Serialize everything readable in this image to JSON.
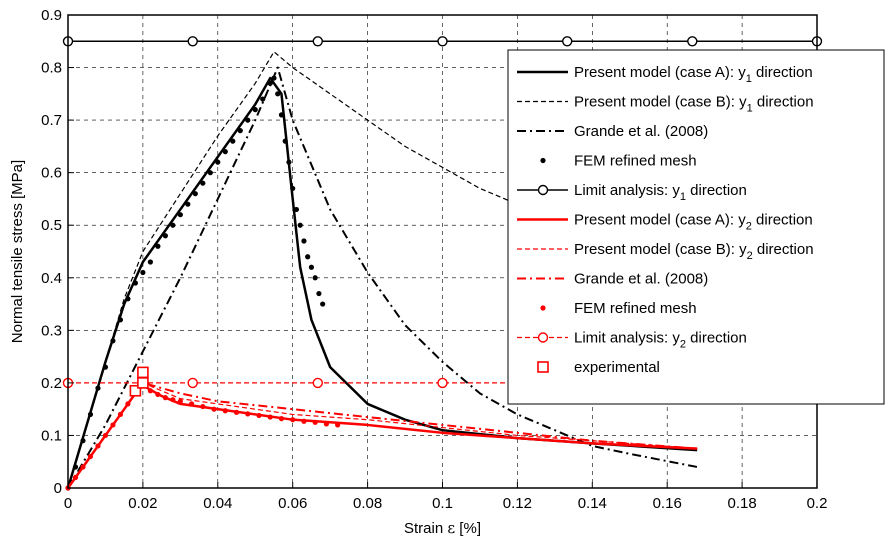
{
  "chart_data": {
    "type": "line",
    "xlabel_prefix": "Strain ",
    "xlabel_symbol": "ε",
    "xlabel_suffix": " [%]",
    "ylabel": "Normal tensile stress [MPa]",
    "xlim": [
      0,
      0.2
    ],
    "ylim": [
      0,
      0.9
    ],
    "x_ticks": [
      "0",
      "0.02",
      "0.04",
      "0.06",
      "0.08",
      "0.1",
      "0.12",
      "0.14",
      "0.16",
      "0.18",
      "0.2"
    ],
    "y_ticks": [
      "0",
      "0.1",
      "0.2",
      "0.3",
      "0.4",
      "0.5",
      "0.6",
      "0.7",
      "0.8",
      "0.9"
    ],
    "grid": true,
    "legend_position": "top-right",
    "series": [
      {
        "name_main": "Present model (case A): y",
        "name_sub": "1",
        "name_tail": " direction",
        "color": "#000000",
        "style": "solid",
        "width": 2.5,
        "x": [
          0,
          0.005,
          0.01,
          0.015,
          0.02,
          0.03,
          0.04,
          0.05,
          0.054,
          0.057,
          0.06,
          0.062,
          0.065,
          0.07,
          0.08,
          0.09,
          0.1,
          0.12,
          0.14,
          0.168
        ],
        "y": [
          0,
          0.12,
          0.24,
          0.35,
          0.43,
          0.53,
          0.63,
          0.73,
          0.78,
          0.75,
          0.55,
          0.42,
          0.32,
          0.23,
          0.16,
          0.13,
          0.11,
          0.095,
          0.085,
          0.072
        ]
      },
      {
        "name_main": "Present model (case B): y",
        "name_sub": "1",
        "name_tail": " direction",
        "color": "#000000",
        "style": "dashed",
        "width": 1.2,
        "x": [
          0,
          0.005,
          0.01,
          0.015,
          0.02,
          0.03,
          0.04,
          0.05,
          0.055,
          0.06,
          0.07,
          0.08,
          0.09,
          0.1,
          0.11,
          0.12,
          0.13,
          0.14
        ],
        "y": [
          0,
          0.12,
          0.24,
          0.36,
          0.45,
          0.56,
          0.67,
          0.77,
          0.83,
          0.8,
          0.75,
          0.7,
          0.65,
          0.61,
          0.57,
          0.54,
          0.51,
          0.48
        ]
      },
      {
        "name_main": "Grande et al. (2008)",
        "name_sub": "",
        "name_tail": "",
        "color": "#000000",
        "style": "dashdot",
        "width": 2,
        "x": [
          0,
          0.01,
          0.02,
          0.03,
          0.04,
          0.05,
          0.056,
          0.06,
          0.07,
          0.08,
          0.09,
          0.1,
          0.11,
          0.12,
          0.13,
          0.14,
          0.15,
          0.168
        ],
        "y": [
          0,
          0.12,
          0.26,
          0.4,
          0.55,
          0.7,
          0.8,
          0.7,
          0.53,
          0.41,
          0.31,
          0.24,
          0.18,
          0.14,
          0.11,
          0.08,
          0.065,
          0.04
        ]
      },
      {
        "name_main": "FEM refined mesh",
        "name_sub": "",
        "name_tail": "",
        "color": "#000000",
        "style": "dots",
        "width": 1,
        "x": [
          0,
          0.002,
          0.004,
          0.006,
          0.008,
          0.01,
          0.012,
          0.014,
          0.016,
          0.018,
          0.02,
          0.022,
          0.024,
          0.026,
          0.028,
          0.03,
          0.032,
          0.034,
          0.036,
          0.038,
          0.04,
          0.042,
          0.044,
          0.046,
          0.048,
          0.05,
          0.052,
          0.054,
          0.055,
          0.056,
          0.057,
          0.058,
          0.059,
          0.06,
          0.061,
          0.062,
          0.063,
          0.064,
          0.065,
          0.066,
          0.067,
          0.068
        ],
        "y": [
          0,
          0.04,
          0.09,
          0.14,
          0.19,
          0.23,
          0.28,
          0.32,
          0.36,
          0.39,
          0.41,
          0.43,
          0.46,
          0.48,
          0.5,
          0.52,
          0.54,
          0.56,
          0.58,
          0.6,
          0.62,
          0.64,
          0.66,
          0.68,
          0.7,
          0.72,
          0.74,
          0.77,
          0.78,
          0.75,
          0.71,
          0.66,
          0.62,
          0.57,
          0.53,
          0.5,
          0.47,
          0.44,
          0.42,
          0.4,
          0.37,
          0.35
        ]
      },
      {
        "name_main": "Limit analysis: y",
        "name_sub": "1",
        "name_tail": " direction",
        "color": "#000000",
        "style": "solid-circle",
        "width": 1.5,
        "x": [
          0,
          0.0333,
          0.0667,
          0.1,
          0.1333,
          0.1667,
          0.2
        ],
        "y": [
          0.85,
          0.85,
          0.85,
          0.85,
          0.85,
          0.85,
          0.85
        ]
      },
      {
        "name_main": "Present model (case A): y",
        "name_sub": "2",
        "name_tail": " direction",
        "color": "#ff0000",
        "style": "solid",
        "width": 2.5,
        "x": [
          0,
          0.005,
          0.01,
          0.015,
          0.018,
          0.02,
          0.025,
          0.03,
          0.04,
          0.05,
          0.06,
          0.07,
          0.08,
          0.1,
          0.12,
          0.14,
          0.168
        ],
        "y": [
          0,
          0.05,
          0.1,
          0.15,
          0.18,
          0.195,
          0.175,
          0.16,
          0.15,
          0.14,
          0.13,
          0.125,
          0.12,
          0.105,
          0.095,
          0.085,
          0.075
        ]
      },
      {
        "name_main": "Present model (case B): y",
        "name_sub": "2",
        "name_tail": " direction",
        "color": "#ff0000",
        "style": "dashed",
        "width": 1.2,
        "x": [
          0,
          0.005,
          0.01,
          0.015,
          0.018,
          0.02,
          0.03,
          0.04,
          0.06,
          0.08,
          0.1,
          0.12,
          0.14,
          0.168
        ],
        "y": [
          0,
          0.05,
          0.1,
          0.15,
          0.18,
          0.2,
          0.17,
          0.16,
          0.14,
          0.13,
          0.115,
          0.1,
          0.09,
          0.075
        ]
      },
      {
        "name_main": "Grande et al. (2008)",
        "name_sub": "",
        "name_tail": "",
        "color": "#ff0000",
        "style": "dashdot",
        "width": 2,
        "x": [
          0,
          0.005,
          0.01,
          0.015,
          0.018,
          0.02,
          0.03,
          0.04,
          0.06,
          0.08,
          0.1,
          0.12,
          0.14,
          0.168
        ],
        "y": [
          0,
          0.05,
          0.1,
          0.15,
          0.18,
          0.2,
          0.18,
          0.165,
          0.15,
          0.135,
          0.12,
          0.105,
          0.09,
          0.075
        ]
      },
      {
        "name_main": "FEM refined mesh",
        "name_sub": "",
        "name_tail": "",
        "color": "#ff0000",
        "style": "dots",
        "width": 1,
        "x": [
          0,
          0.002,
          0.004,
          0.006,
          0.008,
          0.01,
          0.012,
          0.014,
          0.016,
          0.018,
          0.02,
          0.022,
          0.024,
          0.026,
          0.028,
          0.03,
          0.033,
          0.036,
          0.039,
          0.042,
          0.045,
          0.048,
          0.051,
          0.054,
          0.057,
          0.06,
          0.063,
          0.066,
          0.069,
          0.072
        ],
        "y": [
          0,
          0.02,
          0.04,
          0.06,
          0.08,
          0.1,
          0.12,
          0.14,
          0.16,
          0.18,
          0.195,
          0.185,
          0.178,
          0.172,
          0.168,
          0.165,
          0.16,
          0.155,
          0.15,
          0.147,
          0.144,
          0.141,
          0.138,
          0.135,
          0.132,
          0.13,
          0.127,
          0.125,
          0.122,
          0.12
        ]
      },
      {
        "name_main": "Limit analysis: y",
        "name_sub": "2",
        "name_tail": " direction",
        "color": "#ff0000",
        "style": "dashed-circle",
        "width": 1.2,
        "x": [
          0,
          0.0333,
          0.0667,
          0.1,
          0.1333,
          0.1667
        ],
        "y": [
          0.2,
          0.2,
          0.2,
          0.2,
          0.2,
          0.2
        ]
      },
      {
        "name_main": "experimental",
        "name_sub": "",
        "name_tail": "",
        "color": "#ff0000",
        "style": "square",
        "width": 1.5,
        "x": [
          0.018,
          0.02,
          0.02
        ],
        "y": [
          0.185,
          0.2,
          0.22
        ]
      }
    ]
  }
}
